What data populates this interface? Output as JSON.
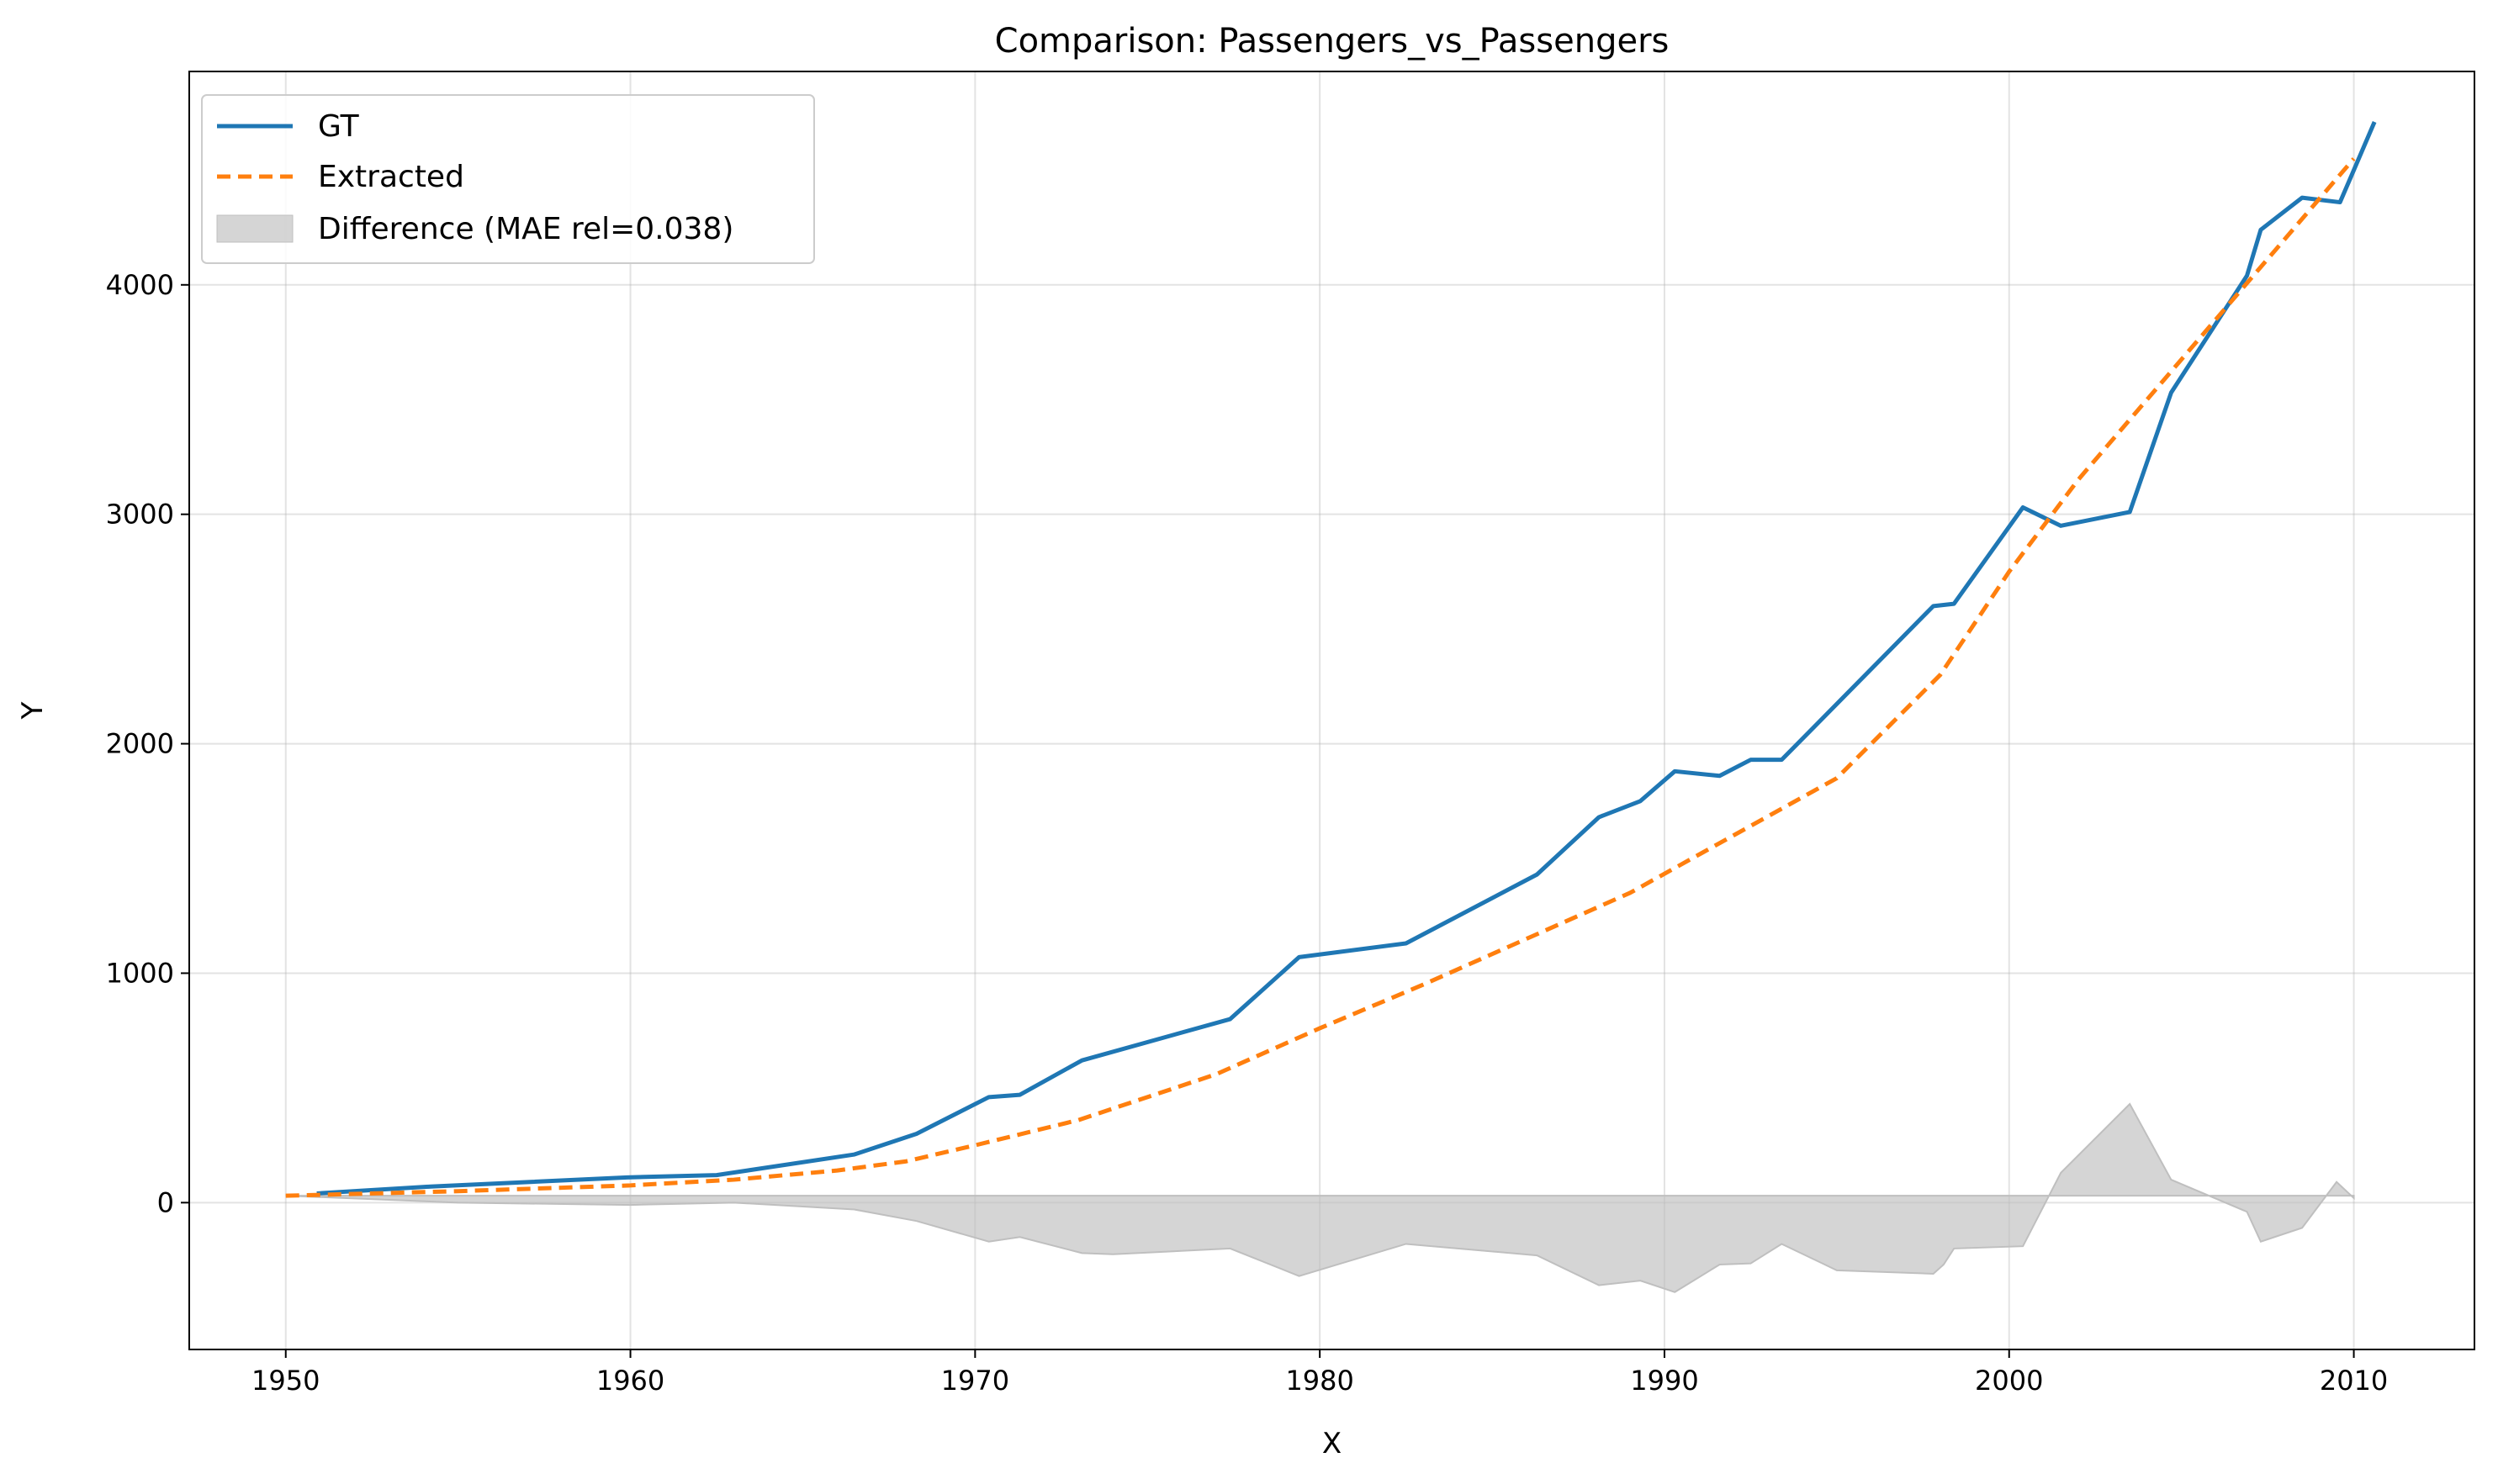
{
  "chart_data": {
    "type": "line",
    "title": "Comparison: Passengers_vs_Passengers",
    "xlabel": "X",
    "ylabel": "Y",
    "xlim": [
      1947.2,
      2013.5
    ],
    "ylim": [
      -640,
      4930
    ],
    "xticks": [
      1950,
      1960,
      1970,
      1980,
      1990,
      2000,
      2010
    ],
    "yticks": [
      0,
      1000,
      2000,
      3000,
      4000
    ],
    "grid": true,
    "legend_position": "top-left",
    "colors": {
      "gt": "#1f77b4",
      "extracted": "#ff7f0e",
      "difference": "#bfbfbf"
    },
    "series": [
      {
        "name": "GT",
        "style": "solid",
        "x": [
          1950.9,
          1954.2,
          1959.9,
          1962.5,
          1966.5,
          1968.3,
          1970.4,
          1971.3,
          1973.1,
          1977.4,
          1979.4,
          1982.5,
          1986.3,
          1988.1,
          1989.3,
          1990.3,
          1991.6,
          1992.5,
          1993.4,
          1997.8,
          1998.4,
          2000.4,
          2001.5,
          2003.5,
          2004.7,
          2006.9,
          2007.3,
          2008.5,
          2009.6,
          2010.6
        ],
        "y": [
          40,
          70,
          110,
          120,
          210,
          300,
          460,
          470,
          620,
          800,
          1070,
          1130,
          1430,
          1680,
          1750,
          1880,
          1860,
          1930,
          1930,
          2600,
          2610,
          3030,
          2950,
          3010,
          3530,
          4040,
          4240,
          4380,
          4360,
          4710
        ]
      },
      {
        "name": "Extracted",
        "style": "dashed",
        "x": [
          1950.0,
          1955.0,
          1960.0,
          1963.0,
          1966.0,
          1968.0,
          1970.0,
          1973.0,
          1977.0,
          1980.0,
          1983.0,
          1986.0,
          1989.0,
          1992.0,
          1995.0,
          1998.0,
          2000.0,
          2002.0,
          2004.0,
          2006.0,
          2008.0,
          2010.0
        ],
        "y": [
          30,
          50,
          75,
          100,
          140,
          180,
          250,
          360,
          560,
          760,
          950,
          1150,
          1350,
          1600,
          1850,
          2300,
          2750,
          3150,
          3500,
          3850,
          4200,
          4550
        ]
      },
      {
        "name": "Difference (MAE rel=0.038)",
        "style": "fill",
        "baseline": 30,
        "x": [
          1950.0,
          1955.0,
          1960.0,
          1963.0,
          1966.5,
          1968.3,
          1970.4,
          1971.3,
          1973.1,
          1974.0,
          1977.4,
          1979.4,
          1982.5,
          1986.3,
          1988.1,
          1989.3,
          1990.3,
          1991.6,
          1992.5,
          1993.4,
          1995.0,
          1997.8,
          1998.1,
          1998.4,
          2000.4,
          2001.5,
          2003.5,
          2004.7,
          2006.9,
          2007.3,
          2008.5,
          2009.5,
          2010.0
        ],
        "y": [
          30,
          0,
          -10,
          0,
          -30,
          -80,
          -170,
          -150,
          -220,
          -225,
          -200,
          -320,
          -180,
          -230,
          -360,
          -340,
          -390,
          -270,
          -265,
          -180,
          -295,
          -310,
          -270,
          -200,
          -190,
          130,
          430,
          100,
          -40,
          -170,
          -110,
          90,
          20
        ]
      }
    ]
  }
}
